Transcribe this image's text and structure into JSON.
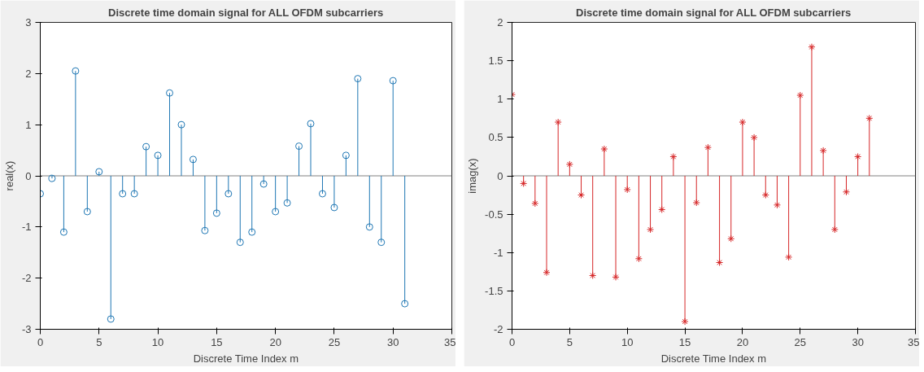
{
  "chart_data": [
    {
      "type": "lollipop",
      "title": "Discrete time domain signal for ALL OFDM subcarriers",
      "xlabel": "Discrete Time Index m",
      "ylabel": "real(x)",
      "x": [
        0,
        1,
        2,
        3,
        4,
        5,
        6,
        7,
        8,
        9,
        10,
        11,
        12,
        13,
        14,
        15,
        16,
        17,
        18,
        19,
        20,
        21,
        22,
        23,
        24,
        25,
        26,
        27,
        28,
        29,
        30,
        31
      ],
      "series": [
        {
          "color": "#1f77b4",
          "values": [
            -0.35,
            -0.05,
            -1.1,
            2.05,
            -0.7,
            0.08,
            -2.8,
            -0.35,
            -0.35,
            0.57,
            0.4,
            1.62,
            1.0,
            0.32,
            -1.07,
            -0.73,
            -0.35,
            -1.3,
            -1.1,
            -0.16,
            -0.7,
            -0.53,
            0.58,
            1.02,
            -0.35,
            -0.62,
            0.4,
            1.9,
            -1.0,
            -1.3,
            1.86,
            -2.5
          ]
        }
      ],
      "xlim": [
        0,
        35
      ],
      "xticks": [
        0,
        5,
        10,
        15,
        20,
        25,
        30,
        35
      ],
      "ylim": [
        -3,
        3
      ],
      "yticks": [
        -3,
        -2,
        -1,
        0,
        1,
        2,
        3
      ],
      "marker": "circle",
      "ref_lines": [
        {
          "axis": "y",
          "value": 0,
          "color": "#808080"
        }
      ]
    },
    {
      "type": "lollipop",
      "title": "Discrete time domain signal for ALL OFDM subcarriers",
      "xlabel": "Discrete Time Index m",
      "ylabel": "imag(x)",
      "x": [
        0,
        1,
        2,
        3,
        4,
        5,
        6,
        7,
        8,
        9,
        10,
        11,
        12,
        13,
        14,
        15,
        16,
        17,
        18,
        19,
        20,
        21,
        22,
        23,
        24,
        25,
        26,
        27,
        28,
        29,
        30,
        31
      ],
      "series": [
        {
          "color": "#d62728",
          "values": [
            1.06,
            -0.1,
            -0.36,
            -1.26,
            0.7,
            0.15,
            -0.25,
            -1.3,
            0.35,
            -1.32,
            -0.18,
            -1.08,
            -0.7,
            -0.44,
            0.25,
            -1.9,
            -0.35,
            0.37,
            -1.13,
            -0.82,
            0.7,
            0.5,
            -0.25,
            -0.38,
            -1.06,
            1.05,
            1.68,
            0.33,
            -0.7,
            -0.21,
            0.25,
            0.75
          ]
        }
      ],
      "xlim": [
        0,
        35
      ],
      "xticks": [
        0,
        5,
        10,
        15,
        20,
        25,
        30,
        35
      ],
      "ylim": [
        -2,
        2
      ],
      "yticks": [
        -2,
        -1.5,
        -1,
        -0.5,
        0,
        0.5,
        1,
        1.5,
        2
      ],
      "marker": "cross",
      "ref_lines": [
        {
          "axis": "y",
          "value": 0,
          "color": "#808080"
        }
      ]
    }
  ]
}
